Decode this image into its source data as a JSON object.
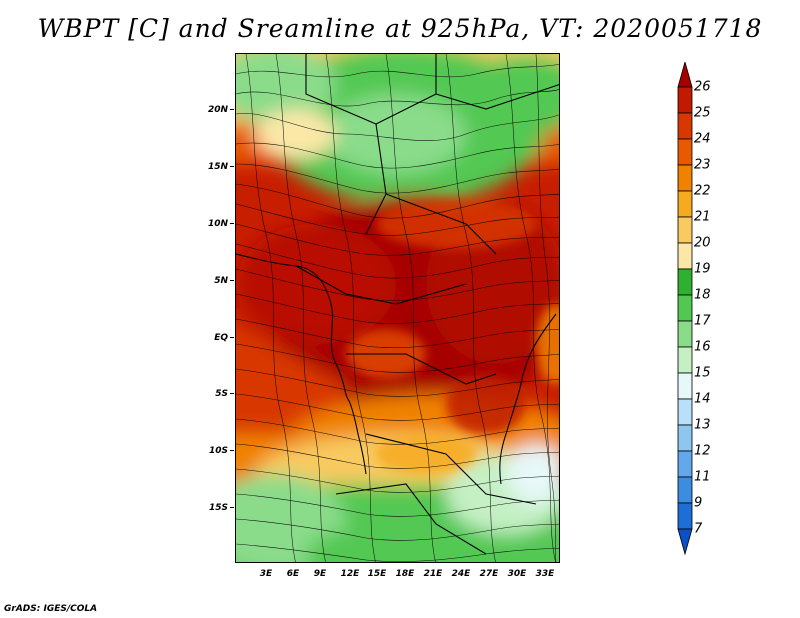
{
  "title": "WBPT [C] and Sreamline at 925hPa, VT: 2020051718",
  "footer": "GrADS: IGES/COLA",
  "lat_labels": [
    "20N",
    "15N",
    "10N",
    "5N",
    "EQ",
    "5S",
    "10S",
    "15S"
  ],
  "lon_labels": [
    "3E",
    "6E",
    "9E",
    "12E",
    "15E",
    "18E",
    "21E",
    "24E",
    "27E",
    "30E",
    "33E"
  ],
  "colorbar": {
    "labels": [
      "26",
      "25",
      "24",
      "23",
      "22",
      "21",
      "20",
      "19",
      "18",
      "17",
      "16",
      "15",
      "14",
      "13",
      "12",
      "11",
      "9",
      "7"
    ],
    "colors": [
      "#a50000",
      "#c01a00",
      "#d83800",
      "#e85a00",
      "#f08200",
      "#f6aa20",
      "#f8ca60",
      "#fbe8a8",
      "#30b030",
      "#52c852",
      "#8adc8a",
      "#c4f0c4",
      "#e6f8f8",
      "#b8e0f8",
      "#8ec6f0",
      "#62a8ea",
      "#3c8ce0",
      "#1e6ed8",
      "#0a50c8"
    ]
  }
}
